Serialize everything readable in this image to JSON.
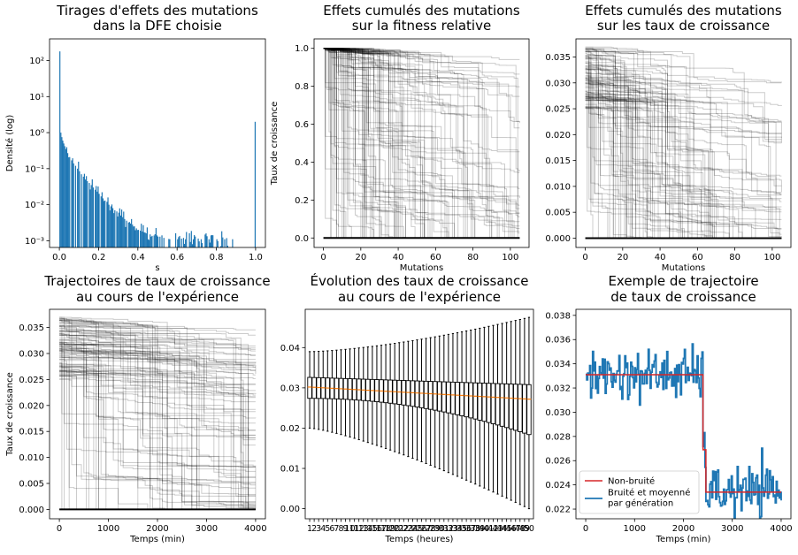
{
  "chart_data": [
    {
      "id": "dfe",
      "type": "bar",
      "title": [
        "Tirages d'effets des mutations",
        "dans la DFE choisie"
      ],
      "xlabel": "s",
      "ylabel": "Densité (log)",
      "xlim": [
        -0.05,
        1.05
      ],
      "ylim": [
        0.00065,
        400
      ],
      "yscale": "log",
      "xticks": [
        0.0,
        0.2,
        0.4,
        0.6,
        0.8,
        1.0
      ],
      "xtick_labels": [
        "0.0",
        "0.2",
        "0.4",
        "0.6",
        "0.8",
        "1.0"
      ],
      "yticks": [
        0.001,
        0.01,
        0.1,
        1,
        10,
        100
      ],
      "ytick_labels": [
        "10⁻³",
        "10⁻²",
        "10⁻¹",
        "10⁰",
        "10¹",
        "10²"
      ],
      "color": "#1f77b4",
      "bins": [
        {
          "x": 0.0,
          "y": 180
        },
        {
          "x": 0.005,
          "y": 1.0
        },
        {
          "x": 0.01,
          "y": 0.75
        },
        {
          "x": 0.015,
          "y": 0.6
        },
        {
          "x": 0.02,
          "y": 0.5
        },
        {
          "x": 0.025,
          "y": 0.42
        },
        {
          "x": 0.03,
          "y": 0.35
        },
        {
          "x": 0.04,
          "y": 0.27
        },
        {
          "x": 0.05,
          "y": 0.21
        },
        {
          "x": 0.06,
          "y": 0.17
        },
        {
          "x": 0.07,
          "y": 0.14
        },
        {
          "x": 0.08,
          "y": 0.12
        },
        {
          "x": 0.09,
          "y": 0.1
        },
        {
          "x": 0.1,
          "y": 0.085
        },
        {
          "x": 0.11,
          "y": 0.07
        },
        {
          "x": 0.12,
          "y": 0.06
        },
        {
          "x": 0.13,
          "y": 0.05
        },
        {
          "x": 0.14,
          "y": 0.045
        },
        {
          "x": 0.15,
          "y": 0.04
        },
        {
          "x": 0.16,
          "y": 0.035
        },
        {
          "x": 0.17,
          "y": 0.03
        },
        {
          "x": 0.18,
          "y": 0.026
        },
        {
          "x": 0.19,
          "y": 0.023
        },
        {
          "x": 0.2,
          "y": 0.02
        },
        {
          "x": 0.21,
          "y": 0.017
        },
        {
          "x": 0.22,
          "y": 0.015
        },
        {
          "x": 0.23,
          "y": 0.013
        },
        {
          "x": 0.24,
          "y": 0.012
        },
        {
          "x": 0.25,
          "y": 0.01
        },
        {
          "x": 0.26,
          "y": 0.009
        },
        {
          "x": 0.27,
          "y": 0.008
        },
        {
          "x": 0.28,
          "y": 0.007
        },
        {
          "x": 0.29,
          "y": 0.0065
        },
        {
          "x": 0.3,
          "y": 0.006
        },
        {
          "x": 0.31,
          "y": 0.005
        },
        {
          "x": 0.32,
          "y": 0.0045
        },
        {
          "x": 0.33,
          "y": 0.004
        },
        {
          "x": 0.34,
          "y": 0.0036
        },
        {
          "x": 0.35,
          "y": 0.0032
        },
        {
          "x": 0.36,
          "y": 0.003
        },
        {
          "x": 0.37,
          "y": 0.0028
        },
        {
          "x": 0.38,
          "y": 0.0025
        },
        {
          "x": 0.39,
          "y": 0.0022
        },
        {
          "x": 0.4,
          "y": 0.002
        },
        {
          "x": 0.41,
          "y": 0.0019
        },
        {
          "x": 0.42,
          "y": 0.0018
        },
        {
          "x": 0.44,
          "y": 0.0016
        },
        {
          "x": 0.46,
          "y": 0.0015
        },
        {
          "x": 0.48,
          "y": 0.0014
        },
        {
          "x": 0.5,
          "y": 0.0013
        },
        {
          "x": 0.53,
          "y": 0.0012
        },
        {
          "x": 0.56,
          "y": 0.0011
        },
        {
          "x": 0.6,
          "y": 0.0011
        },
        {
          "x": 0.64,
          "y": 0.0011
        },
        {
          "x": 0.68,
          "y": 0.0011
        },
        {
          "x": 0.72,
          "y": 0.0011
        },
        {
          "x": 0.76,
          "y": 0.0011
        },
        {
          "x": 0.8,
          "y": 0.0011
        },
        {
          "x": 0.84,
          "y": 0.0011
        },
        {
          "x": 0.88,
          "y": 0.0011
        },
        {
          "x": 0.995,
          "y": 2.0
        }
      ]
    },
    {
      "id": "fitness",
      "type": "line",
      "title": [
        "Effets cumulés des mutations",
        "sur la fitness relative"
      ],
      "xlabel": "Mutations",
      "ylabel": "Taux de croissance",
      "xlim": [
        -5,
        110
      ],
      "ylim": [
        -0.05,
        1.05
      ],
      "xticks": [
        0,
        20,
        40,
        60,
        80,
        100
      ],
      "yticks": [
        0.0,
        0.2,
        0.4,
        0.6,
        0.8,
        1.0
      ],
      "ytick_labels": [
        "0.0",
        "0.2",
        "0.4",
        "0.6",
        "0.8",
        "1.0"
      ],
      "series_description": "100 trajectoires noires semi-transparentes, partant de 1.0 et décroissant par paliers jusqu'à 105 mutations",
      "start_value": 1.0,
      "n_mutations": 105,
      "n_lines": 100
    },
    {
      "id": "growth",
      "type": "line",
      "title": [
        "Effets cumulés des mutations",
        "sur les taux de croissance"
      ],
      "xlabel": "Mutations",
      "ylabel": "",
      "xlim": [
        -5,
        110
      ],
      "ylim": [
        -0.0018,
        0.0385
      ],
      "xticks": [
        0,
        20,
        40,
        60,
        80,
        100
      ],
      "yticks": [
        0.0,
        0.005,
        0.01,
        0.015,
        0.02,
        0.025,
        0.03,
        0.035
      ],
      "ytick_labels": [
        "0.000",
        "0.005",
        "0.010",
        "0.015",
        "0.020",
        "0.025",
        "0.030",
        "0.035"
      ],
      "series_description": "100 trajectoires de taux de croissance, valeurs initiales entre 0.025 et 0.037",
      "start_range": [
        0.025,
        0.037
      ],
      "n_mutations": 105,
      "n_lines": 100
    },
    {
      "id": "traj",
      "type": "line",
      "title": [
        "Trajectoires de taux de croissance",
        "au cours de l'expérience"
      ],
      "xlabel": "Temps (min)",
      "ylabel": "Taux de croissance",
      "xlim": [
        -200,
        4200
      ],
      "ylim": [
        -0.0018,
        0.0385
      ],
      "xticks": [
        0,
        1000,
        2000,
        3000,
        4000
      ],
      "yticks": [
        0.0,
        0.005,
        0.01,
        0.015,
        0.02,
        0.025,
        0.03,
        0.035
      ],
      "ytick_labels": [
        "0.000",
        "0.005",
        "0.010",
        "0.015",
        "0.020",
        "0.025",
        "0.030",
        "0.035"
      ],
      "start_range": [
        0.025,
        0.037
      ],
      "t_max": 4000,
      "n_lines": 100
    },
    {
      "id": "violin",
      "type": "violin",
      "title": [
        "Évolution des taux de croissance",
        "au cours de l'expérience"
      ],
      "xlabel": "Temps (heures)",
      "ylabel": "",
      "ylim": [
        -0.0025,
        0.0495
      ],
      "yticks": [
        0.0,
        0.01,
        0.02,
        0.03,
        0.04
      ],
      "ytick_labels": [
        "0.00",
        "0.01",
        "0.02",
        "0.03",
        "0.04"
      ],
      "categories": [
        "1",
        "2",
        "3",
        "4",
        "5",
        "6",
        "7",
        "8",
        "9",
        "10",
        "11",
        "12",
        "13",
        "14",
        "15",
        "16",
        "17",
        "18",
        "19",
        "20",
        "21",
        "22",
        "23",
        "24",
        "25",
        "26",
        "27",
        "28",
        "29",
        "30",
        "31",
        "32",
        "33",
        "34",
        "35",
        "36",
        "37",
        "38",
        "39",
        "40",
        "41",
        "42",
        "43",
        "44",
        "45",
        "46",
        "47",
        "48",
        "49",
        "50"
      ],
      "median_start": 0.0302,
      "median_end": 0.0272,
      "q1_start": 0.0274,
      "q1_end": 0.0184,
      "q3_start": 0.0326,
      "q3_end": 0.0308,
      "whisker_low_start": 0.02,
      "whisker_low_end": 0.0,
      "whisker_high_start": 0.039,
      "whisker_high_end": 0.0475,
      "median_color": "#ff7f0e"
    },
    {
      "id": "example",
      "type": "line",
      "title": [
        "Exemple de trajectoire",
        "de taux de croissance"
      ],
      "xlabel": "Temps (min)",
      "ylabel": "",
      "xlim": [
        -200,
        4200
      ],
      "ylim": [
        0.0212,
        0.0385
      ],
      "xticks": [
        0,
        1000,
        2000,
        3000,
        4000
      ],
      "yticks": [
        0.022,
        0.024,
        0.026,
        0.028,
        0.03,
        0.032,
        0.034,
        0.036,
        0.038
      ],
      "ytick_labels": [
        "0.022",
        "0.024",
        "0.026",
        "0.028",
        "0.030",
        "0.032",
        "0.034",
        "0.036",
        "0.038"
      ],
      "series": [
        {
          "name": "Non-bruité",
          "color": "#d62728",
          "steps": [
            {
              "x": 0,
              "y": 0.0331
            },
            {
              "x": 2400,
              "y": 0.0331
            },
            {
              "x": 2400,
              "y": 0.0269
            },
            {
              "x": 2460,
              "y": 0.0269
            },
            {
              "x": 2460,
              "y": 0.0234
            },
            {
              "x": 4000,
              "y": 0.0234
            }
          ]
        },
        {
          "name": "Bruité et moyenné\n par génération",
          "color": "#1f77b4",
          "noise": 0.0012,
          "t_step": 20
        }
      ],
      "legend": {
        "loc": "lower left",
        "labels": [
          "Non-bruité",
          "Bruité et moyenné",
          " par génération"
        ]
      }
    }
  ]
}
